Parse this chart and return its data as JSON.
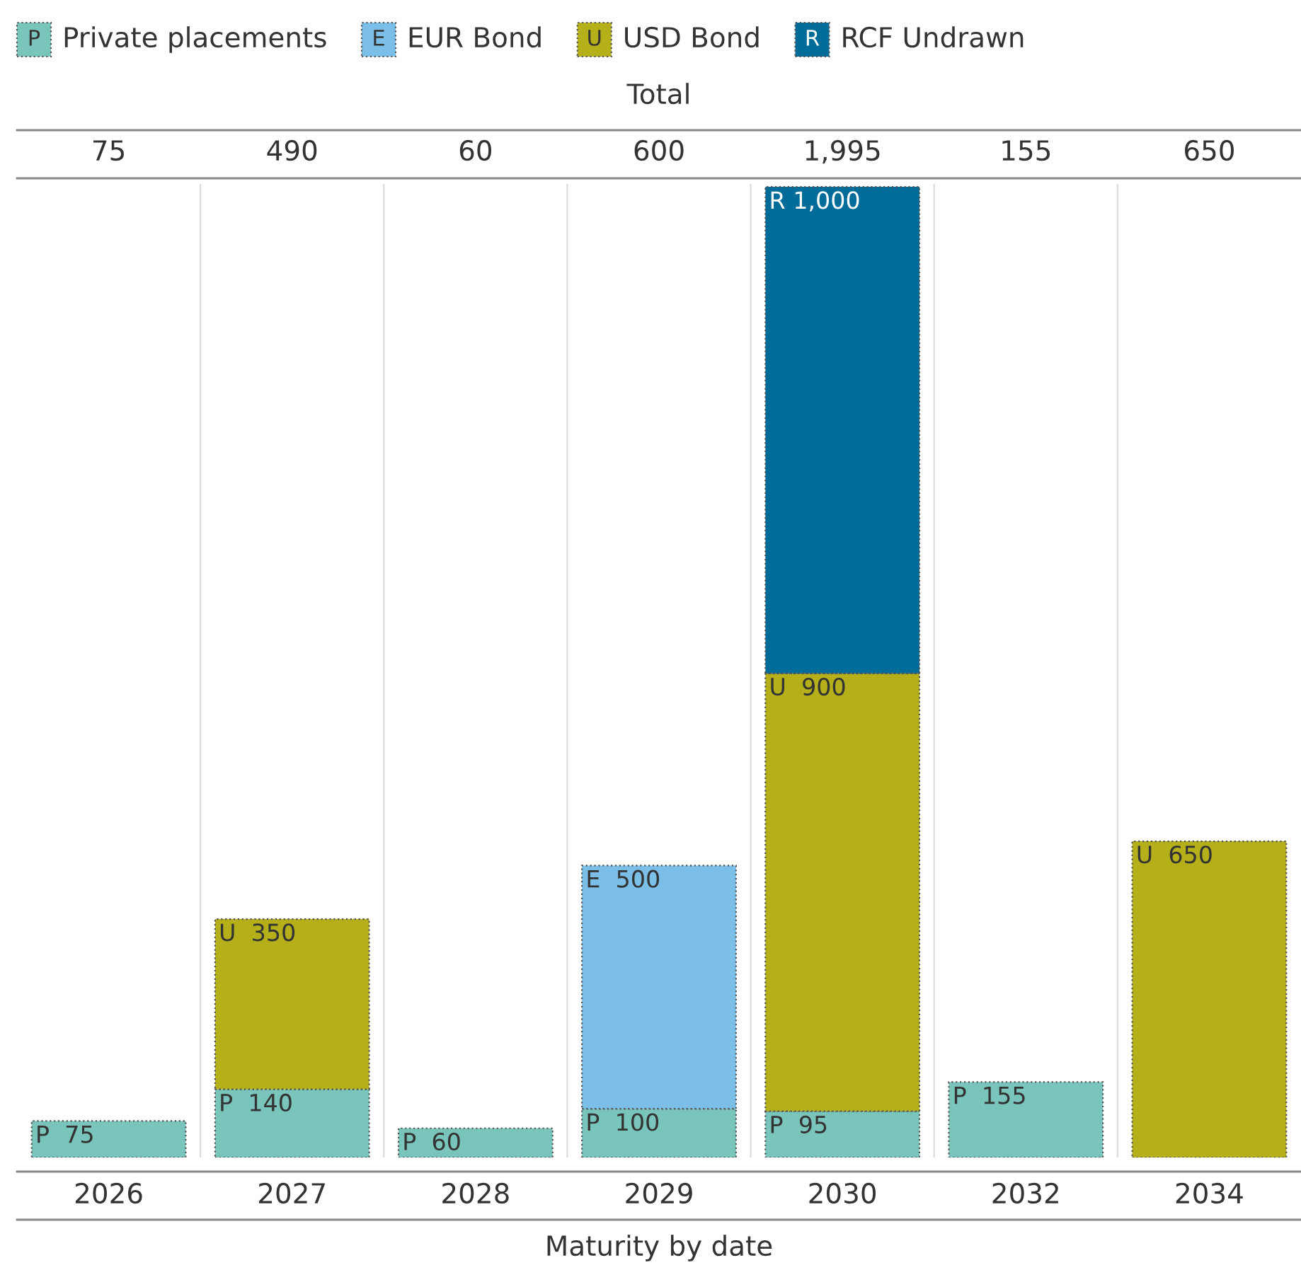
{
  "chart_data": {
    "type": "bar",
    "stacked": true,
    "xlabel": "Maturity by date",
    "annotations": [
      "Total",
      "75",
      "490",
      "60",
      "600",
      "1,995",
      "155",
      "650",
      "P",
      "E",
      "U",
      "R"
    ],
    "categories": [
      "2026",
      "2027",
      "2028",
      "2029",
      "2030",
      "2032",
      "2034"
    ],
    "series": [
      {
        "name": "Private placements",
        "color": "#79c5bc",
        "values": [
          75,
          140,
          60,
          100,
          95,
          155,
          null
        ],
        "value_labels": [
          "P  75",
          "P  140",
          "P  60",
          "P  100",
          "P  95",
          "P  155",
          null
        ]
      },
      {
        "name": "EUR Bond",
        "color": "#7bbfe9",
        "values": [
          null,
          null,
          null,
          500,
          null,
          null,
          null
        ],
        "value_labels": [
          null,
          null,
          null,
          "E  500",
          null,
          null,
          null
        ]
      },
      {
        "name": "USD Bond",
        "color": "#b5b01a",
        "values": [
          null,
          350,
          null,
          null,
          900,
          null,
          650
        ],
        "value_labels": [
          null,
          "U  350",
          null,
          null,
          "U  900",
          null,
          "U  650"
        ]
      },
      {
        "name": "RCF Undrawn",
        "color": "#006c9a",
        "values": [
          null,
          null,
          null,
          null,
          1000,
          null,
          null
        ],
        "value_labels": [
          null,
          null,
          null,
          null,
          "R 1,000",
          null,
          null
        ]
      }
    ],
    "legend": "top left"
  }
}
